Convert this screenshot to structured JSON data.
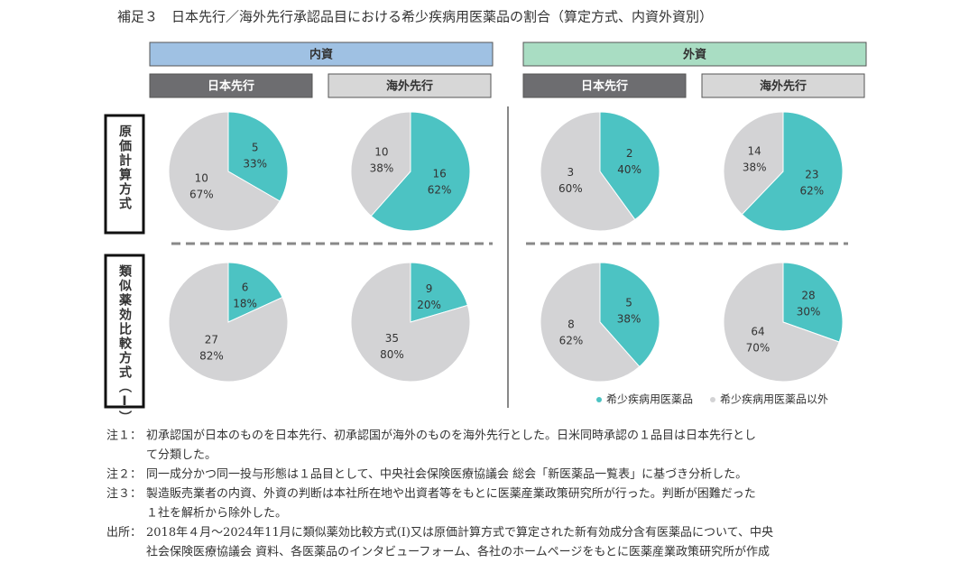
{
  "title": "補足３　日本先行／海外先行承認品目における希少疾病用医薬品の割合（算定方式、内資外資別）",
  "groups": [
    {
      "label": "内資",
      "subgroups": [
        "日本先行",
        "海外先行"
      ]
    },
    {
      "label": "外資",
      "subgroups": [
        "日本先行",
        "海外先行"
      ]
    }
  ],
  "rows": [
    "原価計算方式",
    "類似薬効比較方式（Ⅰ）"
  ],
  "legend": {
    "items": [
      "希少疾病用医薬品",
      "希少疾病用医薬品以外"
    ],
    "colors": [
      "#4cc3c3",
      "#d3d3d5"
    ]
  },
  "chart_data": [
    {
      "type": "pie",
      "values": [
        5,
        10
      ],
      "shares": [
        33,
        67
      ],
      "share_labels": [
        "33%",
        "67%"
      ]
    },
    {
      "type": "pie",
      "values": [
        16,
        10
      ],
      "shares": [
        62,
        38
      ],
      "share_labels": [
        "62%",
        "38%"
      ]
    },
    {
      "type": "pie",
      "values": [
        2,
        3
      ],
      "shares": [
        40,
        60
      ],
      "share_labels": [
        "40%",
        "60%"
      ]
    },
    {
      "type": "pie",
      "values": [
        23,
        14
      ],
      "shares": [
        62,
        38
      ],
      "share_labels": [
        "62%",
        "38%"
      ]
    },
    {
      "type": "pie",
      "values": [
        6,
        27
      ],
      "shares": [
        18,
        82
      ],
      "share_labels": [
        "18%",
        "82%"
      ]
    },
    {
      "type": "pie",
      "values": [
        9,
        35
      ],
      "shares": [
        20,
        80
      ],
      "share_labels": [
        "20%",
        "80%"
      ]
    },
    {
      "type": "pie",
      "values": [
        5,
        8
      ],
      "shares": [
        38,
        62
      ],
      "share_labels": [
        "38%",
        "62%"
      ]
    },
    {
      "type": "pie",
      "values": [
        28,
        64
      ],
      "shares": [
        30,
        70
      ],
      "share_labels": [
        "30%",
        "70%"
      ]
    }
  ],
  "notes": [
    {
      "label": "注１：",
      "lines": [
        "初承認国が日本のものを日本先行、初承認国が海外のものを海外先行とした。日米同時承認の１品目は日本先行とし",
        "て分類した。"
      ]
    },
    {
      "label": "注２：",
      "lines": [
        "同一成分かつ同一投与形態は１品目として、中央社会保険医療協議会 総会「新医薬品一覧表」に基づき分析した。"
      ]
    },
    {
      "label": "注３：",
      "lines": [
        "製造販売業者の内資、外資の判断は本社所在地や出資者等をもとに医薬産業政策研究所が行った。判断が困難だった",
        "１社を解析から除外した。"
      ]
    },
    {
      "label": "出所：",
      "lines": [
        "2018年４月～2024年11月に類似薬効比較方式(Ⅰ)又は原価計算方式で算定された新有効成分含有医薬品について、中央",
        "社会保険医療協議会 資料、各医薬品のインタビューフォーム、各社のホームページをもとに医薬産業政策研究所が作成"
      ]
    }
  ]
}
